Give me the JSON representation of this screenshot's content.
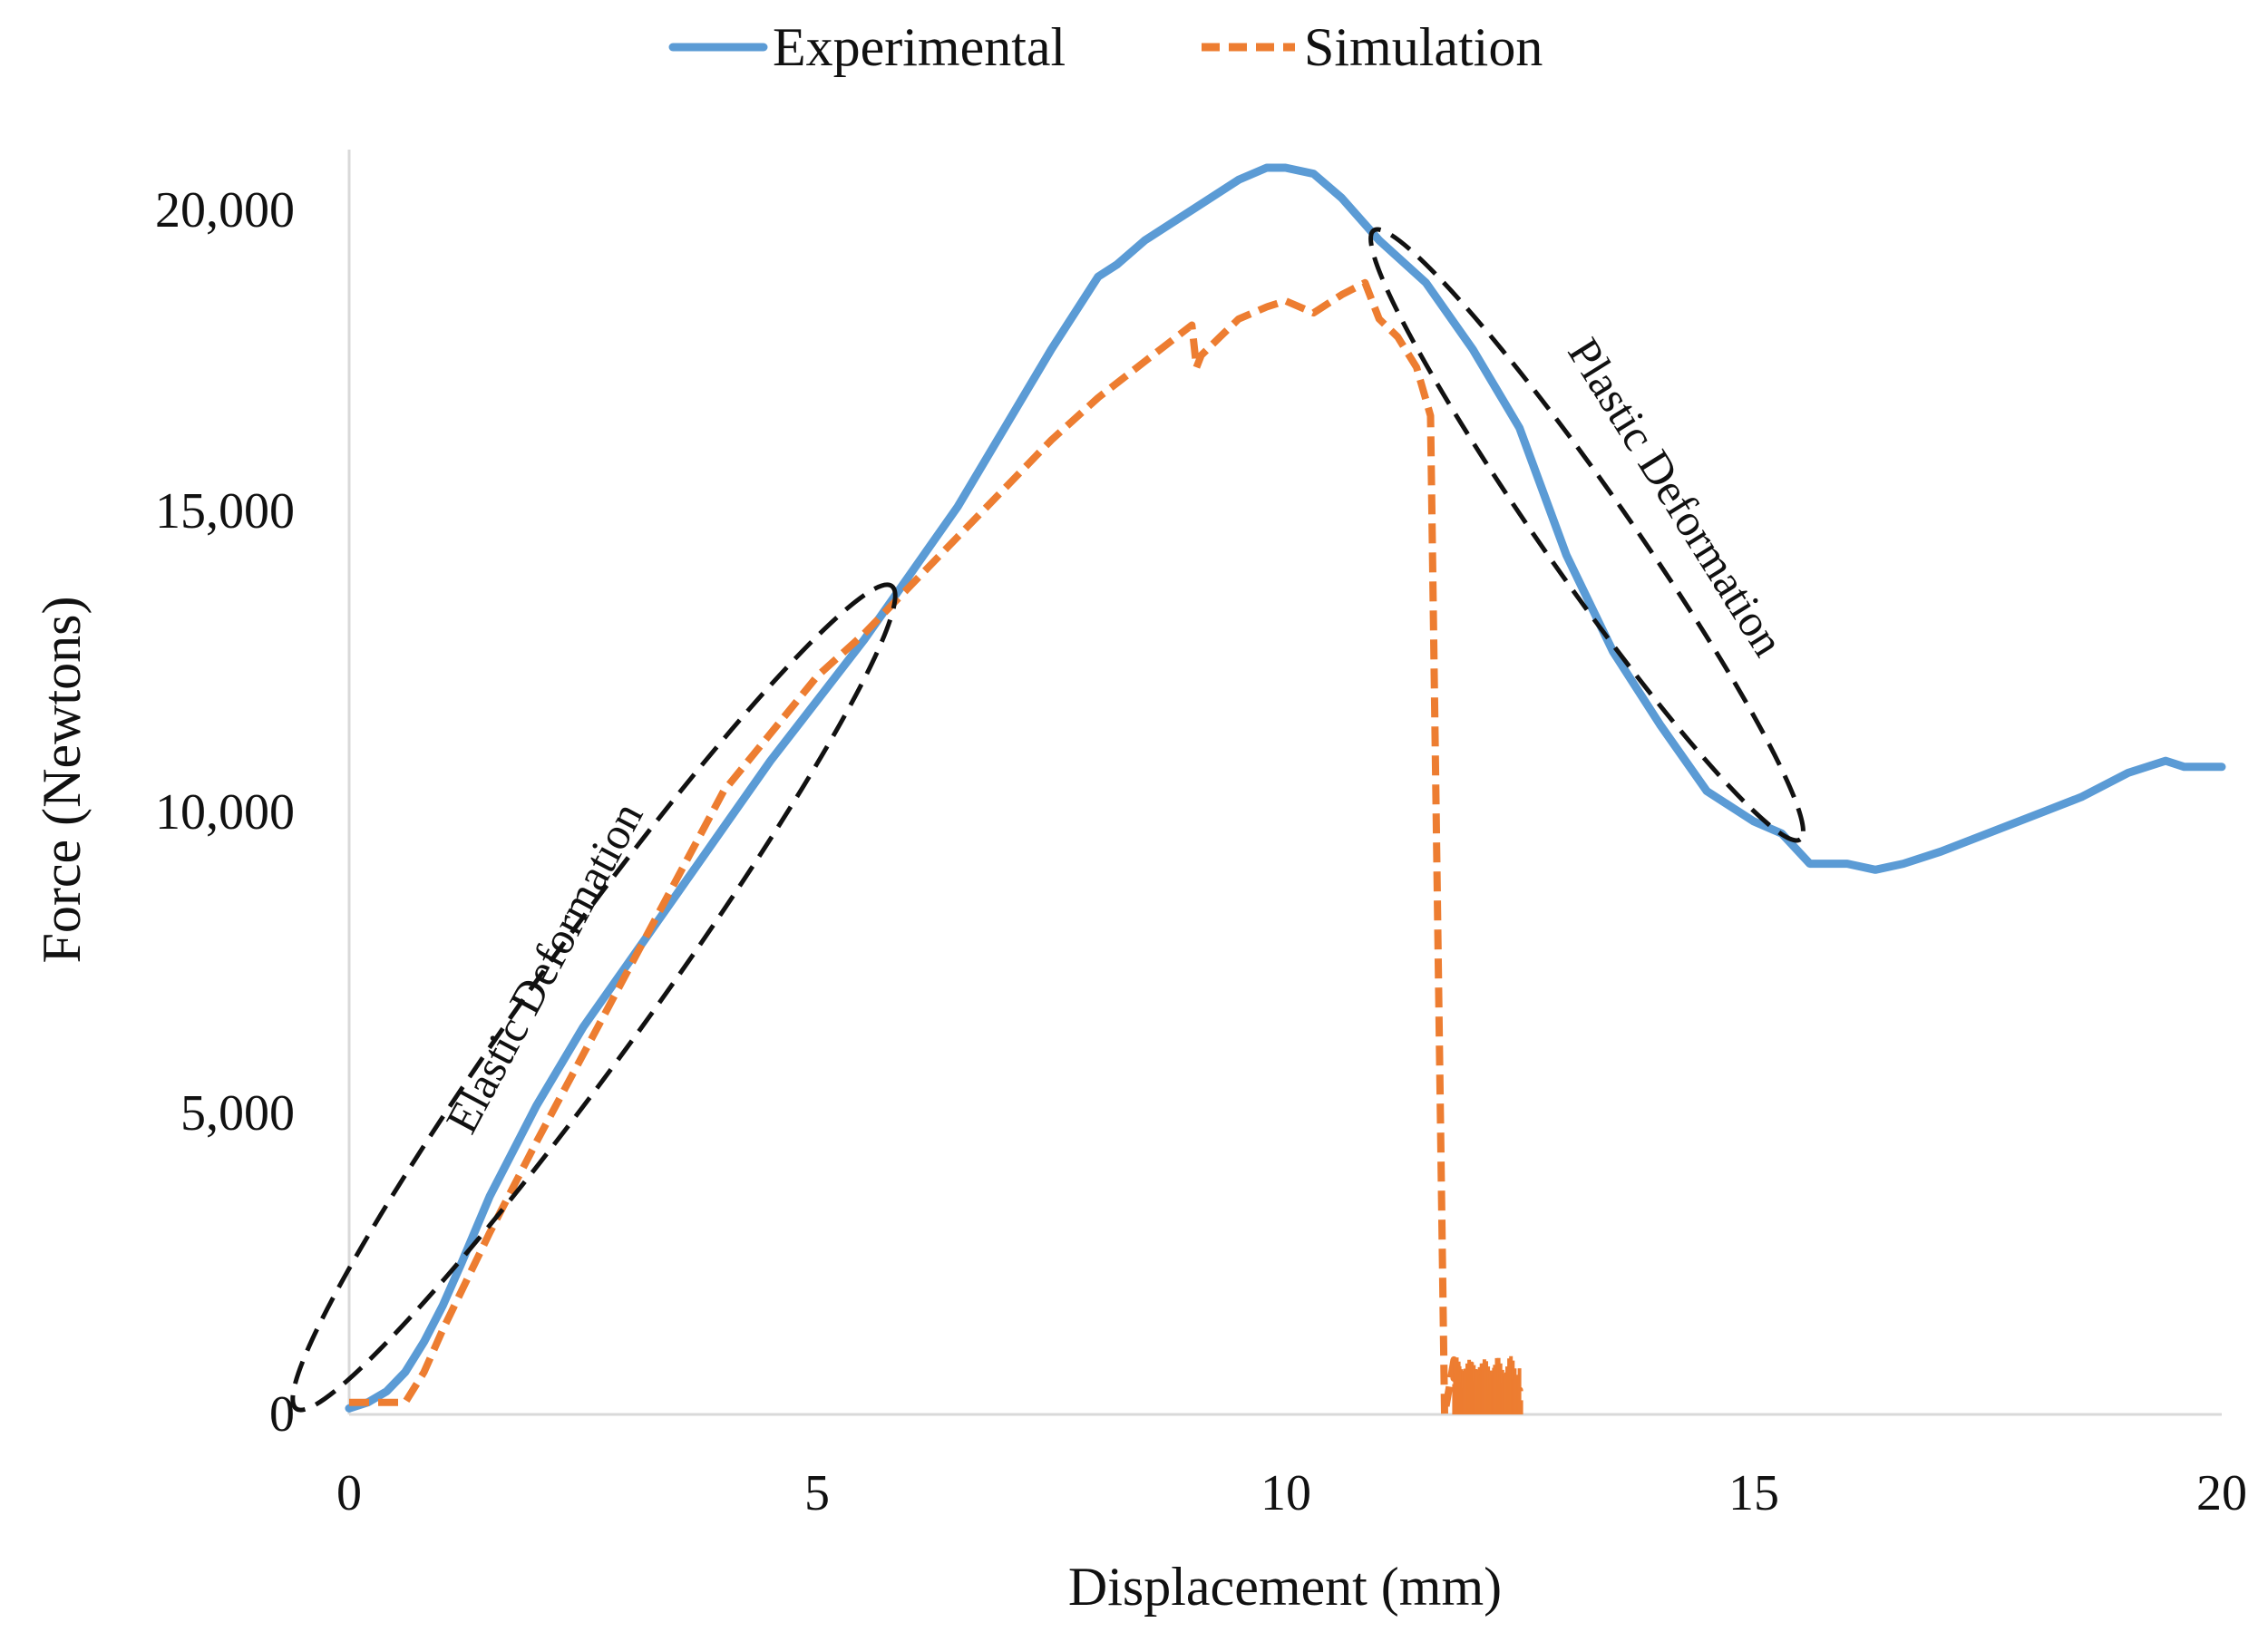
{
  "chart_data": {
    "type": "line",
    "title": "",
    "xlabel": "Displacement (mm)",
    "ylabel": "Force (Newtons)",
    "xlim": [
      0,
      20
    ],
    "ylim": [
      0,
      21000
    ],
    "x_ticks": [
      0,
      5,
      10,
      15,
      20
    ],
    "x_tick_labels": [
      "0",
      "5",
      "10",
      "15",
      "20"
    ],
    "y_ticks": [
      0,
      5000,
      10000,
      15000,
      20000
    ],
    "y_tick_labels": [
      "0",
      "5,000",
      "10,000",
      "15,000",
      "20,000"
    ],
    "grid": false,
    "legend_position": "top-center",
    "series": [
      {
        "name": "Experimental",
        "style": "solid",
        "color": "#5b9bd5",
        "x": [
          0,
          0.2,
          0.4,
          0.6,
          0.8,
          1.0,
          1.2,
          1.5,
          2.0,
          2.5,
          3.0,
          3.5,
          4.0,
          4.5,
          5.0,
          5.5,
          6.0,
          6.5,
          7.0,
          7.5,
          8.0,
          8.2,
          8.5,
          9.0,
          9.5,
          9.8,
          10.0,
          10.3,
          10.6,
          11.0,
          11.5,
          12.0,
          12.5,
          13.0,
          13.5,
          14.0,
          14.5,
          14.8,
          15.0,
          15.3,
          15.6,
          16.0,
          16.3,
          16.6,
          17.0,
          17.5,
          18.0,
          18.5,
          19.0,
          19.4,
          19.6,
          20.0
        ],
        "y": [
          100,
          200,
          380,
          700,
          1200,
          1800,
          2500,
          3600,
          5100,
          6400,
          7500,
          8600,
          9700,
          10800,
          11800,
          12800,
          13900,
          15000,
          16300,
          17600,
          18800,
          19000,
          19400,
          19900,
          20400,
          20600,
          20600,
          20500,
          20100,
          19400,
          18700,
          17600,
          16300,
          14200,
          12600,
          11400,
          10300,
          10000,
          9800,
          9600,
          9100,
          9100,
          9000,
          9100,
          9300,
          9600,
          9900,
          10200,
          10600,
          10800,
          10700,
          10700
        ]
      },
      {
        "name": "Simulation",
        "style": "dashed",
        "color": "#ed7d31",
        "x": [
          0,
          0.3,
          0.6,
          0.8,
          1.0,
          1.5,
          2.0,
          3.0,
          4.0,
          5.0,
          5.5,
          6.0,
          6.5,
          7.0,
          7.5,
          8.0,
          8.5,
          9.0,
          9.05,
          9.1,
          9.3,
          9.5,
          9.8,
          10.0,
          10.3,
          10.6,
          10.85,
          11.0,
          11.2,
          11.4,
          11.55,
          11.6,
          11.7,
          11.8,
          11.8,
          12.0,
          12.2,
          12.5,
          12.5
        ],
        "y": [
          200,
          200,
          200,
          700,
          1400,
          3000,
          4500,
          7400,
          10300,
          12200,
          12900,
          13700,
          14500,
          15300,
          16100,
          16800,
          17400,
          18000,
          17300,
          17500,
          17800,
          18100,
          18300,
          18400,
          18200,
          18500,
          18700,
          18100,
          17800,
          17300,
          16500,
          11000,
          0,
          900,
          600,
          700,
          600,
          400,
          0
        ]
      }
    ],
    "annotations": [
      {
        "text": "Elastic Deformation",
        "region": "ellipse around x 0.7 to 5.9, y 1500 to 14000"
      },
      {
        "text": "Plastic Deformation",
        "region": "ellipse around x 10.9 to 14.8, y 10000 to 19600"
      }
    ]
  }
}
